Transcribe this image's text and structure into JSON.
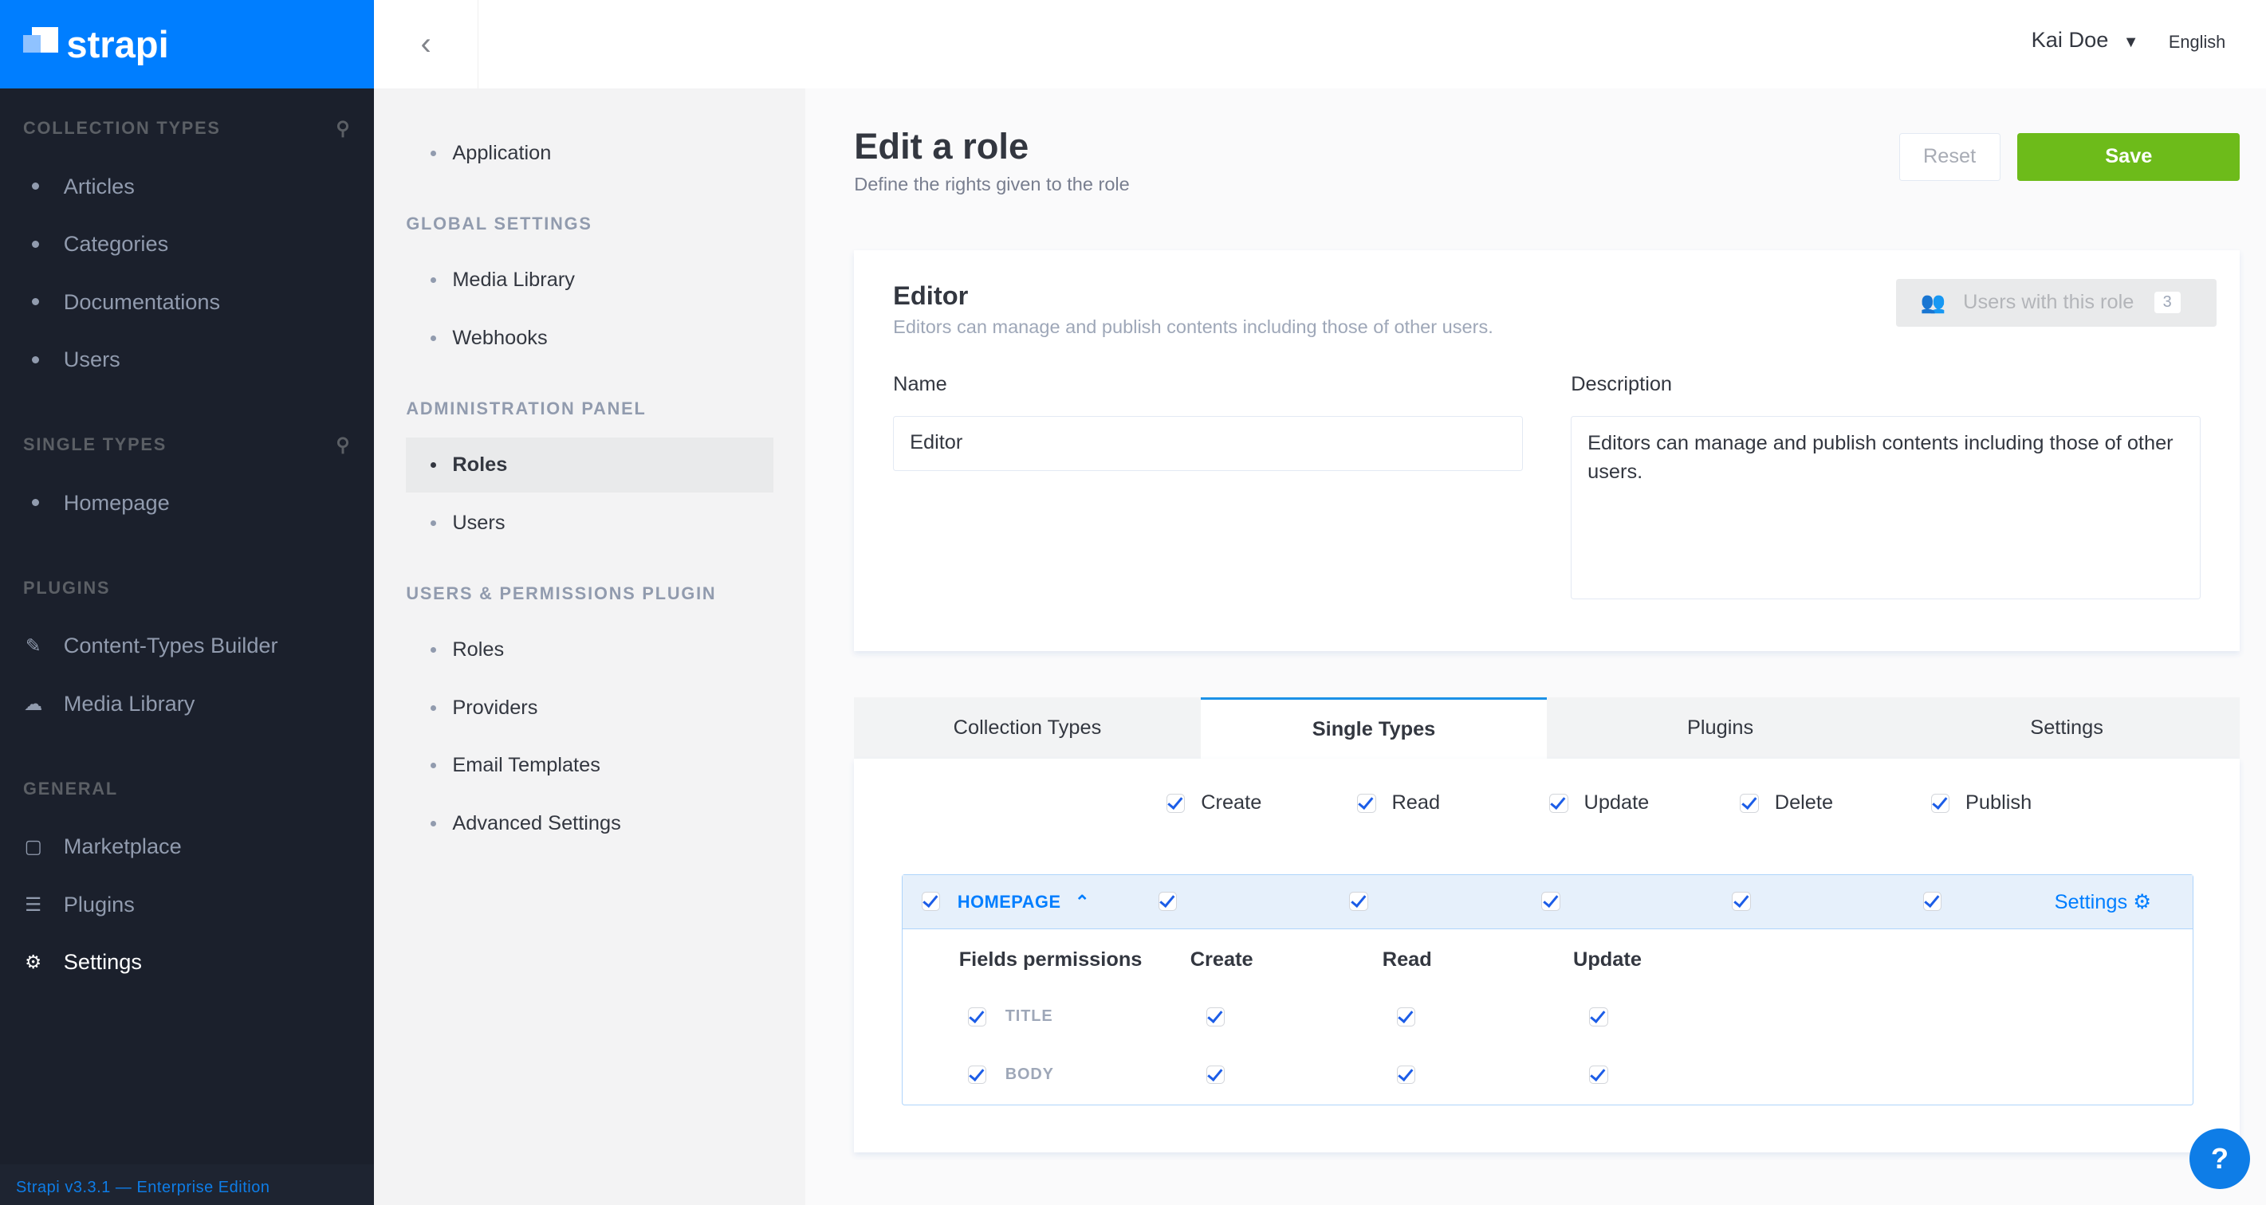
{
  "brand": {
    "name": "strapi",
    "color": "#007eff",
    "footer": "Strapi v3.3.1 — Enterprise Edition"
  },
  "leftnav": {
    "sections": [
      {
        "title": "COLLECTION TYPES",
        "search": true,
        "items": [
          "Articles",
          "Categories",
          "Documentations",
          "Users"
        ]
      },
      {
        "title": "SINGLE TYPES",
        "search": true,
        "items": [
          "Homepage"
        ]
      },
      {
        "title": "PLUGINS",
        "items": [
          {
            "label": "Content-Types Builder",
            "icon": "paintbrush-icon"
          },
          {
            "label": "Media Library",
            "icon": "cloud-upload-icon"
          }
        ]
      },
      {
        "title": "GENERAL",
        "items": [
          {
            "label": "Marketplace",
            "icon": "basket-icon"
          },
          {
            "label": "Plugins",
            "icon": "list-icon"
          },
          {
            "label": "Settings",
            "icon": "gear-icon",
            "active": true
          }
        ]
      }
    ]
  },
  "topbar": {
    "user": "Kai Doe",
    "language": "English"
  },
  "subnav": {
    "top_item": "Application",
    "sections": [
      {
        "title": "GLOBAL SETTINGS",
        "items": [
          "Media Library",
          "Webhooks"
        ]
      },
      {
        "title": "ADMINISTRATION PANEL",
        "items": [
          "Roles",
          "Users"
        ],
        "active": "Roles"
      },
      {
        "title": "USERS & PERMISSIONS PLUGIN",
        "items": [
          "Roles",
          "Providers",
          "Email Templates",
          "Advanced Settings"
        ]
      }
    ]
  },
  "page": {
    "title": "Edit a role",
    "subtitle": "Define the rights given to the role",
    "reset": "Reset",
    "save": "Save",
    "save_color": "#6dbb1a"
  },
  "role": {
    "name": "Editor",
    "description": "Editors can manage and publish contents including those of other users.",
    "users_label": "Users with this role",
    "users_count": "3",
    "name_label": "Name",
    "description_label": "Description",
    "name_value": "Editor",
    "description_value": "Editors can manage and publish contents including those of other users."
  },
  "tabs": [
    {
      "label": "Collection Types"
    },
    {
      "label": "Single Types",
      "active": true
    },
    {
      "label": "Plugins"
    },
    {
      "label": "Settings"
    }
  ],
  "actions": [
    "Create",
    "Read",
    "Update",
    "Delete",
    "Publish"
  ],
  "permission": {
    "name": "HOMEPAGE",
    "settings": "Settings",
    "fields_header": "Fields permissions",
    "field_actions": [
      "Create",
      "Read",
      "Update"
    ],
    "fields": [
      "TITLE",
      "BODY"
    ]
  },
  "help": "?"
}
